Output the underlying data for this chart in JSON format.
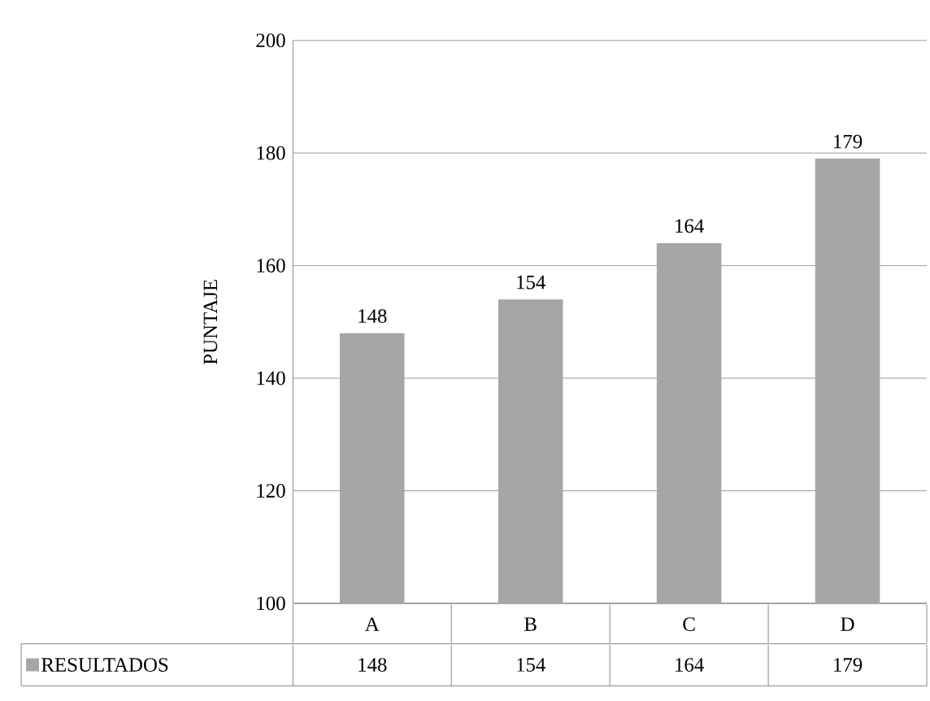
{
  "chart_data": {
    "type": "bar",
    "categories": [
      "A",
      "B",
      "C",
      "D"
    ],
    "series": [
      {
        "name": "RESULTADOS",
        "color": "#a6a6a6",
        "values": [
          148,
          154,
          164,
          179
        ],
        "value_labels": [
          "148",
          "154",
          "164",
          "179"
        ]
      }
    ],
    "ylabel": "PUNTAJE",
    "ylim": [
      100,
      200
    ],
    "yticks": [
      100,
      120,
      140,
      160,
      180,
      200
    ],
    "grid": "y",
    "legend": "bottom"
  }
}
